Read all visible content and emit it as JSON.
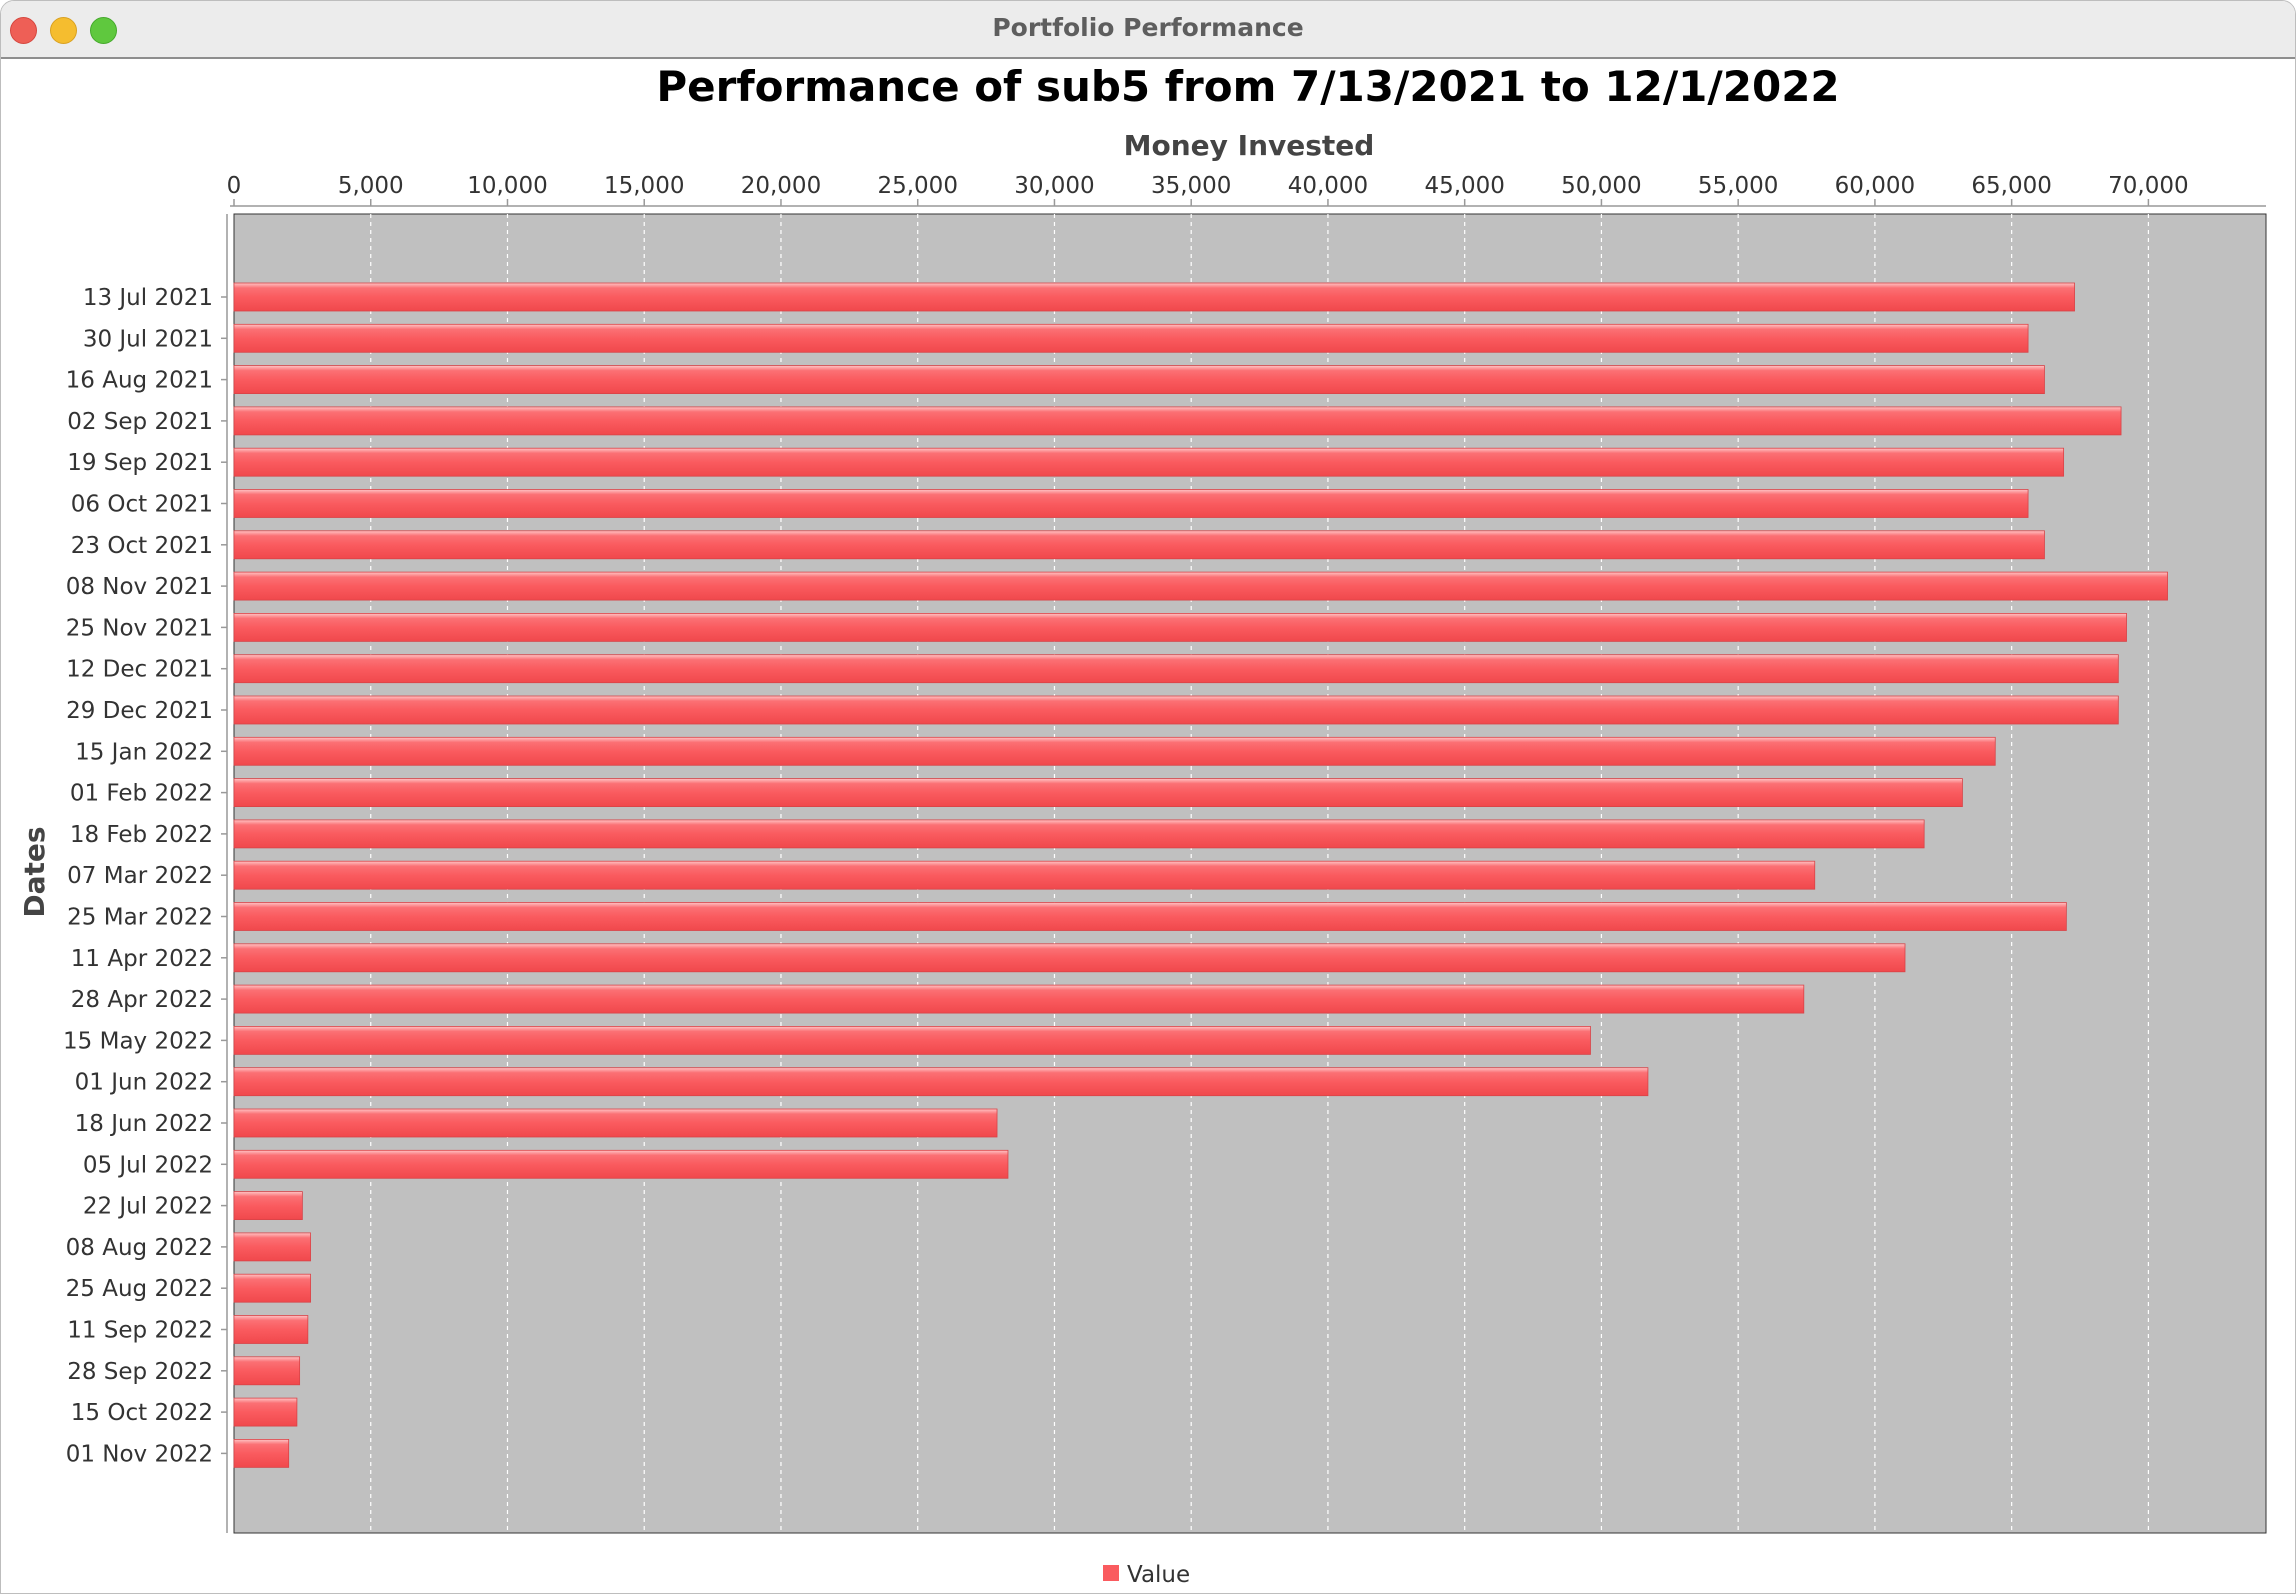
{
  "window": {
    "title": "Portfolio Performance"
  },
  "colors": {
    "bar": "#fa5b5f",
    "plot_background": "#c0c0c0",
    "gridline": "#ffffff"
  },
  "chart_data": {
    "type": "bar",
    "orientation": "horizontal",
    "title": "Performance of sub5 from 7/13/2021 to 12/1/2022",
    "xlabel": "Money Invested",
    "ylabel": "Dates",
    "xlim": [
      0,
      74300
    ],
    "value_axis_position": "top",
    "grid": true,
    "legend_position": "bottom",
    "ticks": [
      "0",
      "5,000",
      "10,000",
      "15,000",
      "20,000",
      "25,000",
      "30,000",
      "35,000",
      "40,000",
      "45,000",
      "50,000",
      "55,000",
      "60,000",
      "65,000",
      "70,000"
    ],
    "tick_values": [
      0,
      5000,
      10000,
      15000,
      20000,
      25000,
      30000,
      35000,
      40000,
      45000,
      50000,
      55000,
      60000,
      65000,
      70000
    ],
    "categories": [
      "13 Jul 2021",
      "30 Jul 2021",
      "16 Aug 2021",
      "02 Sep 2021",
      "19 Sep 2021",
      "06 Oct 2021",
      "23 Oct 2021",
      "08 Nov 2021",
      "25 Nov 2021",
      "12 Dec 2021",
      "29 Dec 2021",
      "15 Jan 2022",
      "01 Feb 2022",
      "18 Feb 2022",
      "07 Mar 2022",
      "25 Mar 2022",
      "11 Apr 2022",
      "28 Apr 2022",
      "15 May 2022",
      "01 Jun 2022",
      "18 Jun 2022",
      "05 Jul 2022",
      "22 Jul 2022",
      "08 Aug 2022",
      "25 Aug 2022",
      "11 Sep 2022",
      "28 Sep 2022",
      "15 Oct 2022",
      "01 Nov 2022"
    ],
    "series": [
      {
        "name": "Value",
        "values": [
          67300,
          65600,
          66200,
          69000,
          66900,
          65600,
          66200,
          70700,
          69200,
          68900,
          68900,
          64400,
          63200,
          61800,
          57800,
          67000,
          61100,
          57400,
          49600,
          51700,
          27900,
          28300,
          2500,
          2800,
          2800,
          2700,
          2400,
          2300,
          2000
        ]
      }
    ]
  }
}
